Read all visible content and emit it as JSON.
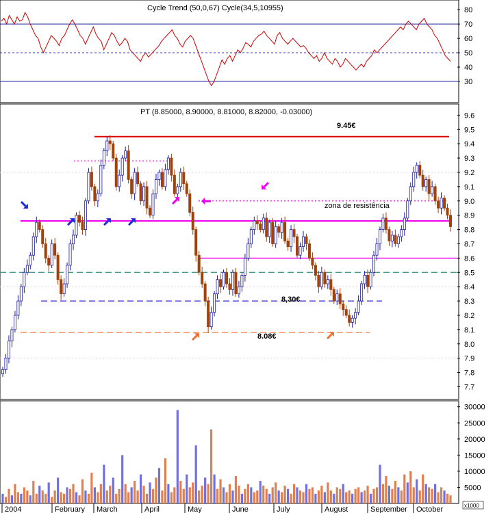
{
  "colors": {
    "panel_border": "#000000",
    "grid_dot": "#c8a0c8",
    "up_candle": "#1a1aa8",
    "down_candle": "#a0420a",
    "indicator_line": "#cc0000",
    "indicator_bands": "#2020a0",
    "resistance_9_45": "#dd0000",
    "resistance_zone": "#ee00ee",
    "support_8_30": "#1a1ad0",
    "support_8_08": "#f07030",
    "teal_dashed": "#2e8b7a",
    "volume_blue": "#7070e0",
    "volume_orange": "#e08050",
    "arrow_blue": "#1a2ad8",
    "arrow_magenta": "#ee00ee",
    "arrow_orange": "#f07030"
  },
  "chart_data": [
    {
      "id": "cycle_panel",
      "type": "line",
      "title": "Cycle Trend (50,0,67) Cycle(34,5,10955)",
      "ylim": [
        20,
        82
      ],
      "yticks": [
        "80",
        "70",
        "60",
        "50",
        "40",
        "30"
      ],
      "levels": [
        70,
        50,
        30
      ],
      "series": [
        {
          "values": [
            72,
            74,
            70,
            76,
            73,
            70,
            75,
            72,
            73,
            78,
            75,
            70,
            66,
            62,
            60,
            54,
            50,
            54,
            58,
            62,
            60,
            58,
            55,
            60,
            62,
            66,
            70,
            73,
            70,
            66,
            62,
            60,
            56,
            60,
            64,
            68,
            63,
            60,
            58,
            52,
            56,
            60,
            64,
            62,
            58,
            55,
            57,
            60,
            58,
            52,
            50,
            48,
            46,
            44,
            48,
            50,
            47,
            49,
            51,
            53,
            55,
            58,
            60,
            62,
            64,
            66,
            62,
            60,
            56,
            54,
            58,
            60,
            62,
            60,
            55,
            50,
            45,
            40,
            35,
            30,
            27,
            30,
            35,
            40,
            45,
            42,
            46,
            48,
            44,
            48,
            52,
            50,
            53,
            57,
            56,
            54,
            58,
            60,
            62,
            63,
            65,
            62,
            60,
            58,
            56,
            62,
            64,
            60,
            58,
            56,
            58,
            60,
            58,
            56,
            54,
            55,
            53,
            50,
            48,
            46,
            48,
            44,
            46,
            50,
            46,
            44,
            42,
            46,
            44,
            40,
            42,
            46,
            44,
            42,
            40,
            38,
            40,
            42,
            40,
            44,
            46,
            48,
            52,
            50,
            52,
            54,
            56,
            58,
            60,
            62,
            64,
            66,
            68,
            66,
            70,
            72,
            70,
            68,
            66,
            70,
            72,
            74,
            70,
            68,
            66,
            62,
            60,
            56,
            52,
            48,
            46,
            44
          ]
        }
      ]
    },
    {
      "id": "price_panel",
      "type": "candlestick",
      "title": "PT (8.85000, 8.90000, 8.81000, 8.82000, -0.03000)",
      "ylim": [
        7.64,
        9.64
      ],
      "yticks": [
        "9.6",
        "9.5",
        "9.4",
        "9.3",
        "9.2",
        "9.1",
        "9.0",
        "8.9",
        "8.8",
        "8.7",
        "8.6",
        "8.5",
        "8.4",
        "8.3",
        "8.2",
        "8.1",
        "8.0",
        "7.9",
        "7.8",
        "7.7"
      ],
      "xlabels": [
        "2004",
        "February",
        "March",
        "April",
        "May",
        "June",
        "July",
        "August",
        "September",
        "October"
      ],
      "closes": [
        7.82,
        7.9,
        8.02,
        8.1,
        8.2,
        8.3,
        8.4,
        8.5,
        8.55,
        8.62,
        8.75,
        8.85,
        8.8,
        8.7,
        8.6,
        8.55,
        8.7,
        8.62,
        8.45,
        8.35,
        8.42,
        8.55,
        8.7,
        8.76,
        8.9,
        8.85,
        8.8,
        9.0,
        9.2,
        9.1,
        9.0,
        9.05,
        9.25,
        9.35,
        9.42,
        9.4,
        9.3,
        9.1,
        9.18,
        9.3,
        9.35,
        9.15,
        9.05,
        9.2,
        9.12,
        9.0,
        9.1,
        8.95,
        8.9,
        9.05,
        9.15,
        9.2,
        9.1,
        9.22,
        9.3,
        9.18,
        9.05,
        9.1,
        9.2,
        9.12,
        9.05,
        8.92,
        8.8,
        8.62,
        8.5,
        8.42,
        8.3,
        8.12,
        8.22,
        8.35,
        8.45,
        8.4,
        8.5,
        8.42,
        8.38,
        8.5,
        8.35,
        8.4,
        8.48,
        8.6,
        8.7,
        8.8,
        8.86,
        8.84,
        8.8,
        8.88,
        8.75,
        8.85,
        8.7,
        8.82,
        8.78,
        8.85,
        8.72,
        8.68,
        8.8,
        8.75,
        8.62,
        8.68,
        8.75,
        8.7,
        8.6,
        8.55,
        8.48,
        8.4,
        8.5,
        8.42,
        8.45,
        8.38,
        8.3,
        8.35,
        8.28,
        8.24,
        8.2,
        8.15,
        8.18,
        8.22,
        8.3,
        8.42,
        8.48,
        8.4,
        8.5,
        8.62,
        8.7,
        8.8,
        8.88,
        8.8,
        8.72,
        8.76,
        8.7,
        8.75,
        8.8,
        8.88,
        9.0,
        9.1,
        9.2,
        9.25,
        9.18,
        9.1,
        9.15,
        9.05,
        9.1,
        9.0,
        8.95,
        9.02,
        8.95,
        8.9,
        8.82
      ],
      "levels": [
        {
          "name": "resistance_high",
          "value": 9.45,
          "style": "solid",
          "color": "resistance_9_45",
          "label": "9.45€"
        },
        {
          "name": "resistance_zone",
          "value": 8.86,
          "style": "solid",
          "color": "resistance_zone",
          "label": "zona de resistência"
        },
        {
          "name": "support_mid",
          "value": 8.3,
          "style": "dashed",
          "color": "support_8_30",
          "label": "8,30€"
        },
        {
          "name": "support_low",
          "value": 8.08,
          "style": "dashed",
          "color": "support_8_08",
          "label": "8.08€"
        },
        {
          "name": "teal_level",
          "value": 8.5,
          "style": "dashed",
          "color": "teal_dashed",
          "label": ""
        },
        {
          "name": "magenta_level",
          "value": 8.6,
          "style": "solid",
          "color": "resistance_zone",
          "label": ""
        },
        {
          "name": "dotted_9_28",
          "value": 9.28,
          "style": "dotted",
          "color": "resistance_zone",
          "label": ""
        },
        {
          "name": "dotted_9_00",
          "value": 9.0,
          "style": "dotted",
          "color": "resistance_zone",
          "label": ""
        }
      ]
    },
    {
      "id": "volume_panel",
      "type": "bar",
      "ylim": [
        0,
        31000
      ],
      "yticks": [
        "30000",
        "25000",
        "20000",
        "15000",
        "10000",
        "5000"
      ],
      "unit_label": "x1000",
      "values": [
        3000,
        2000,
        4500,
        2500,
        6000,
        3500,
        3000,
        5000,
        4000,
        2500,
        7000,
        3000,
        5500,
        4000,
        3000,
        6500,
        2000,
        4000,
        8000,
        3500,
        3000,
        5000,
        4500,
        6000,
        3500,
        2500,
        7500,
        4000,
        3000,
        9500,
        5000,
        3500,
        6000,
        12000,
        4000,
        5500,
        8000,
        3000,
        4500,
        15000,
        6000,
        3500,
        5000,
        7000,
        4000,
        9000,
        5500,
        3000,
        6500,
        4500,
        8000,
        11000,
        4000,
        14000,
        6000,
        3500,
        5000,
        29000,
        7000,
        4500,
        9000,
        5000,
        6500,
        18000,
        4000,
        5500,
        8000,
        6000,
        23000,
        9000,
        4500,
        7500,
        5000,
        3500,
        6000,
        4000,
        8500,
        5500,
        3000,
        4500,
        6000,
        5000,
        3500,
        4000,
        7000,
        5500,
        4500,
        3000,
        5000,
        6500,
        4000,
        3500,
        5500,
        4500,
        3000,
        6000,
        5000,
        4000,
        3500,
        6000,
        4500,
        5000,
        3000,
        4000,
        5500,
        3500,
        6500,
        4000,
        3000,
        5000,
        4500,
        6000,
        3500,
        4000,
        3000,
        4500,
        5000,
        3500,
        4000,
        5500,
        3000,
        4500,
        5000,
        12000,
        6000,
        8500,
        5500,
        4500,
        7000,
        5000,
        4000,
        9000,
        6500,
        10000,
        5000,
        7500,
        4000,
        9000,
        6000,
        5000,
        4500,
        6000,
        3500,
        5000,
        4000,
        3000,
        2500
      ]
    }
  ]
}
